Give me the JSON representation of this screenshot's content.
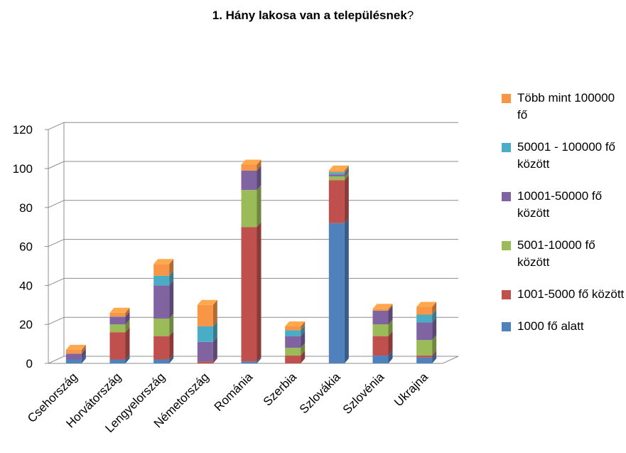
{
  "chart_data": {
    "type": "bar",
    "stacked": true,
    "three_d": true,
    "title": "1. Hány lakosa van a településnek",
    "title_suffix": "?",
    "xlabel": "",
    "ylabel": "",
    "ylim": [
      0,
      120
    ],
    "yticks": [
      0,
      20,
      40,
      60,
      80,
      100,
      120
    ],
    "grid": true,
    "legend_position": "right",
    "categories": [
      "Csehország",
      "Horvátország",
      "Lengyelország",
      "Németország",
      "Románia",
      "Szerbia",
      "Szlovákia",
      "Szlovénia",
      "Ukrajna"
    ],
    "series": [
      {
        "name": "1000 fő alatt",
        "color": "#4F81BD",
        "values": [
          2,
          2,
          2,
          0,
          1,
          0,
          72,
          4,
          3
        ]
      },
      {
        "name": "1001-5000 fő között",
        "color": "#C0504D",
        "values": [
          0,
          14,
          12,
          1,
          69,
          4,
          22,
          10,
          1
        ]
      },
      {
        "name": "5001-10000 fő között",
        "color": "#9BBB59",
        "values": [
          0,
          4,
          9,
          0,
          19,
          4,
          2,
          6,
          8
        ]
      },
      {
        "name": "10001-50000 fő között",
        "color": "#8064A2",
        "values": [
          3,
          4,
          17,
          10,
          10,
          6,
          1,
          7,
          9
        ]
      },
      {
        "name": "50001 - 100000 fő között",
        "color": "#4BACC6",
        "values": [
          0,
          0,
          5,
          8,
          0,
          3,
          1,
          0,
          4
        ]
      },
      {
        "name": "Több mint 100000 fő",
        "color": "#F79646",
        "values": [
          2,
          2,
          6,
          11,
          3,
          2,
          1,
          1,
          4
        ]
      }
    ]
  },
  "legend": [
    {
      "label": "Több mint 100000 fő",
      "color": "#F79646"
    },
    {
      "label": "50001 - 100000 fő között",
      "color": "#4BACC6"
    },
    {
      "label": "10001-50000 fő között",
      "color": "#8064A2"
    },
    {
      "label": "5001-10000 fő között",
      "color": "#9BBB59"
    },
    {
      "label": "1001-5000 fő között",
      "color": "#C0504D"
    },
    {
      "label": "1000 fő alatt",
      "color": "#4F81BD"
    }
  ]
}
